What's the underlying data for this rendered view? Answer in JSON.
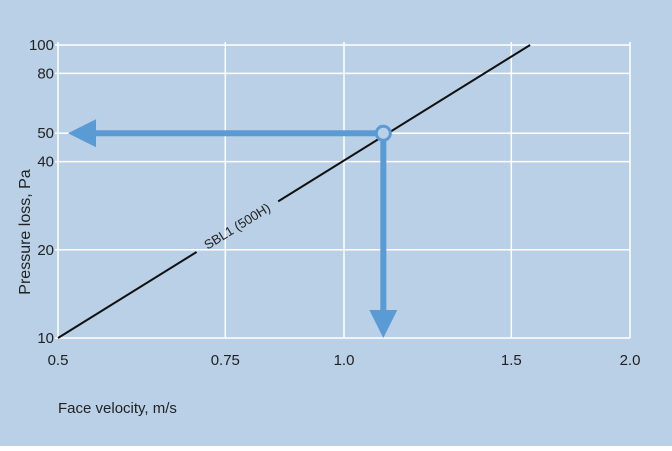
{
  "chart_data": {
    "type": "line",
    "title": "",
    "xlabel": "Face velocity, m/s",
    "ylabel": "Pressure loss, Pa",
    "xscale": "log",
    "yscale": "log",
    "xlim": [
      0.5,
      2.0
    ],
    "ylim": [
      10,
      100
    ],
    "x_ticks": [
      {
        "value": 0.5,
        "label": "0.5"
      },
      {
        "value": 0.75,
        "label": "0.75"
      },
      {
        "value": 1.0,
        "label": "1.0"
      },
      {
        "value": 1.5,
        "label": "1.5"
      },
      {
        "value": 2.0,
        "label": "2.0"
      }
    ],
    "y_ticks": [
      {
        "value": 10,
        "label": "10"
      },
      {
        "value": 20,
        "label": "20"
      },
      {
        "value": 40,
        "label": "40"
      },
      {
        "value": 50,
        "label": "50"
      },
      {
        "value": 80,
        "label": "80"
      },
      {
        "value": 100,
        "label": "100"
      }
    ],
    "grid": true,
    "series": [
      {
        "name": "SBL1 (500H)",
        "x": [
          0.5,
          1.57
        ],
        "y": [
          10,
          100
        ]
      }
    ],
    "annotations": [
      {
        "type": "lookup-point",
        "x": 1.1,
        "y": 50
      },
      {
        "type": "arrow-to-y-axis",
        "from_x": 1.1,
        "y": 50
      },
      {
        "type": "arrow-to-x-axis",
        "x": 1.1,
        "from_y": 50
      }
    ],
    "colors": {
      "background": "#b9d0e6",
      "grid": "#ffffff",
      "series": "#111111",
      "arrow": "#5b9bd5",
      "text": "#222222"
    }
  }
}
